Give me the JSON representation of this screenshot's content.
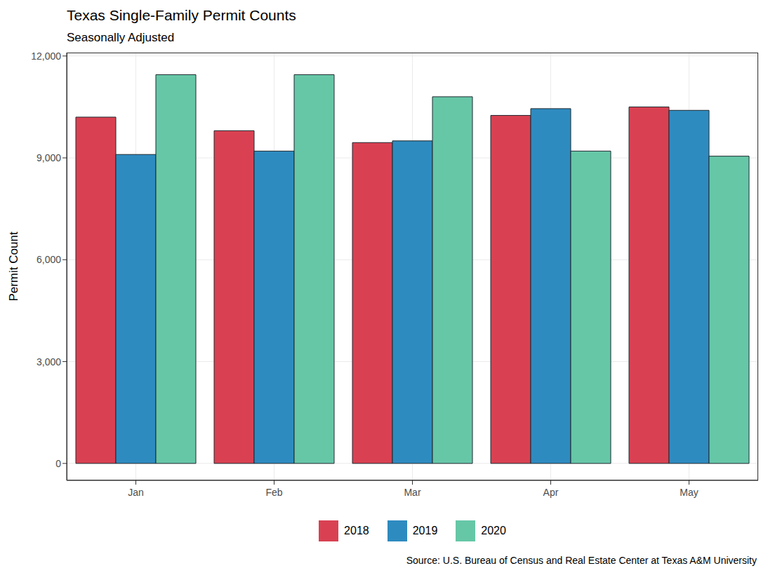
{
  "chart_data": {
    "type": "bar",
    "title": "Texas Single-Family Permit Counts",
    "subtitle": "Seasonally Adjusted",
    "y_label": "Permit Count",
    "annotation": "Source: U.S. Bureau of Census and Real Estate Center at Texas A&M University",
    "categories": [
      "Jan",
      "Feb",
      "Mar",
      "Apr",
      "May"
    ],
    "series": [
      {
        "name": "2018",
        "color": "#d94152",
        "values": [
          10200,
          9800,
          9450,
          10250,
          10500
        ]
      },
      {
        "name": "2019",
        "color": "#2e8bc0",
        "values": [
          9100,
          9200,
          9500,
          10450,
          10400
        ]
      },
      {
        "name": "2020",
        "color": "#66c7a7",
        "values": [
          11450,
          11450,
          10800,
          9200,
          9050
        ]
      }
    ],
    "ylim": [
      -500,
      12100
    ],
    "yticks": [
      0,
      {
        "value": 3000,
        "label": "3,000"
      },
      {
        "value": 6000,
        "label": "6,000"
      },
      {
        "value": 9000,
        "label": "9,000"
      },
      {
        "value": 12000,
        "label": "12,000"
      }
    ],
    "grid": true,
    "legend": "bottom"
  }
}
